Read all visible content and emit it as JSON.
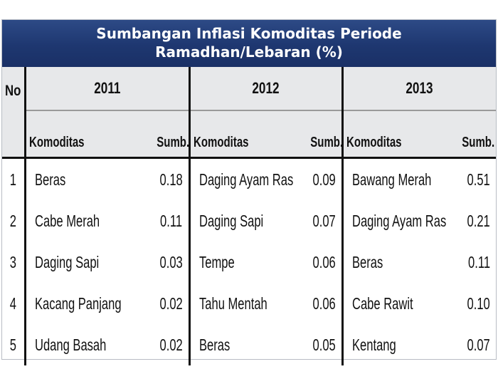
{
  "title": {
    "line1": "Sumbangan Inflasi Komoditas Periode",
    "line2": "Ramadhan/Lebaran (%)"
  },
  "headers": {
    "no": "No",
    "komoditas": "Komoditas",
    "sumb": "Sumb."
  },
  "years": [
    "2011",
    "2012",
    "2013"
  ],
  "rows": [
    {
      "no": "1",
      "c2011": "Beras",
      "v2011": "0.18",
      "c2012": "Daging Ayam Ras",
      "v2012": "0.09",
      "c2013": "Bawang Merah",
      "v2013": "0.51"
    },
    {
      "no": "2",
      "c2011": "Cabe Merah",
      "v2011": "0.11",
      "c2012": "Daging Sapi",
      "v2012": "0.07",
      "c2013": "Daging Ayam Ras",
      "v2013": "0.21"
    },
    {
      "no": "3",
      "c2011": "Daging Sapi",
      "v2011": "0.03",
      "c2012": "Tempe",
      "v2012": "0.06",
      "c2013": "Beras",
      "v2013": "0.11"
    },
    {
      "no": "4",
      "c2011": "Kacang Panjang",
      "v2011": "0.02",
      "c2012": "Tahu Mentah",
      "v2012": "0.06",
      "c2013": "Cabe Rawit",
      "v2013": "0.10"
    },
    {
      "no": "5",
      "c2011": "Udang Basah",
      "v2011": "0.02",
      "c2012": "Beras",
      "v2012": "0.05",
      "c2013": "Kentang",
      "v2013": "0.07"
    }
  ]
}
